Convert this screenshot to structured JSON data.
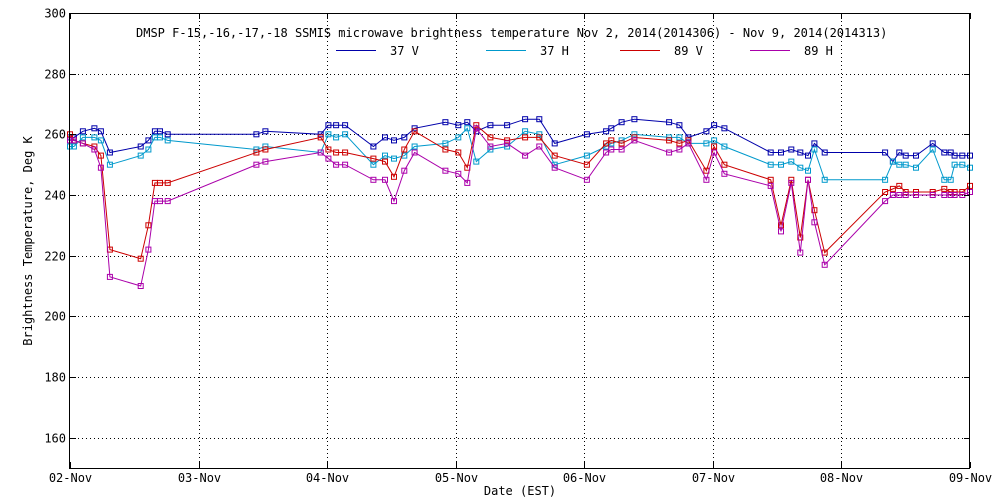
{
  "chart_data": {
    "type": "line",
    "title": "DMSP F-15,-16,-17,-18 SSMIS microwave brightness temperature Nov  2, 2014(2014306) - Nov  9, 2014(2014313)",
    "xlabel": "Date (EST)",
    "ylabel": "Brightness Temperature, Deg K",
    "xlim": [
      0,
      7
    ],
    "ylim": [
      150,
      300
    ],
    "yticks": [
      160,
      180,
      200,
      220,
      240,
      260,
      280,
      300
    ],
    "xticks": [
      0,
      1,
      2,
      3,
      4,
      5,
      6,
      7
    ],
    "xtick_labels": [
      "02-Nov",
      "03-Nov",
      "04-Nov",
      "05-Nov",
      "06-Nov",
      "07-Nov",
      "08-Nov",
      "09-Nov"
    ],
    "grid": true,
    "legend_position": "top-center",
    "series": [
      {
        "name": "37 V",
        "color": "#0000aa",
        "x": [
          0.0,
          0.03,
          0.1,
          0.19,
          0.24,
          0.31,
          0.55,
          0.61,
          0.66,
          0.7,
          0.76,
          1.45,
          1.52,
          1.95,
          2.01,
          2.07,
          2.14,
          2.36,
          2.45,
          2.52,
          2.6,
          2.68,
          2.92,
          3.02,
          3.09,
          3.16,
          3.27,
          3.4,
          3.54,
          3.65,
          3.77,
          4.02,
          4.17,
          4.21,
          4.29,
          4.39,
          4.66,
          4.74,
          4.81,
          4.95,
          5.01,
          5.09,
          5.45,
          5.53,
          5.61,
          5.68,
          5.74,
          5.79,
          5.87,
          6.34,
          6.4,
          6.45,
          6.5,
          6.58,
          6.71,
          6.8,
          6.85,
          6.88,
          6.94,
          7.0
        ],
        "y": [
          259,
          259,
          261,
          262,
          261,
          254,
          256,
          258,
          261,
          261,
          260,
          260,
          261,
          260,
          263,
          263,
          263,
          256,
          259,
          258,
          259,
          262,
          264,
          263,
          264,
          261,
          263,
          263,
          265,
          265,
          257,
          260,
          261,
          262,
          264,
          265,
          264,
          263,
          259,
          261,
          263,
          262,
          254,
          254,
          255,
          254,
          253,
          257,
          254,
          254,
          251,
          254,
          253,
          253,
          257,
          254,
          254,
          253,
          253,
          253
        ]
      },
      {
        "name": "37 H",
        "color": "#0099cc",
        "x": [
          0.0,
          0.03,
          0.1,
          0.19,
          0.24,
          0.31,
          0.55,
          0.61,
          0.66,
          0.7,
          0.76,
          1.45,
          1.52,
          1.95,
          2.01,
          2.07,
          2.14,
          2.36,
          2.45,
          2.52,
          2.6,
          2.68,
          2.92,
          3.02,
          3.09,
          3.16,
          3.27,
          3.4,
          3.54,
          3.65,
          3.77,
          4.02,
          4.17,
          4.21,
          4.29,
          4.39,
          4.66,
          4.74,
          4.81,
          4.95,
          5.01,
          5.09,
          5.45,
          5.53,
          5.61,
          5.68,
          5.74,
          5.79,
          5.87,
          6.34,
          6.4,
          6.45,
          6.5,
          6.58,
          6.71,
          6.8,
          6.85,
          6.88,
          6.94,
          7.0
        ],
        "y": [
          256,
          256,
          259,
          259,
          258,
          250,
          253,
          255,
          259,
          259,
          258,
          255,
          256,
          254,
          260,
          259,
          260,
          250,
          253,
          252,
          253,
          256,
          257,
          259,
          262,
          251,
          255,
          256,
          261,
          260,
          250,
          253,
          256,
          257,
          258,
          260,
          259,
          259,
          257,
          257,
          258,
          256,
          250,
          250,
          251,
          249,
          248,
          255,
          245,
          245,
          251,
          250,
          250,
          249,
          255,
          245,
          245,
          250,
          250,
          249
        ]
      },
      {
        "name": "89 V",
        "color": "#cc0000",
        "x": [
          0.0,
          0.03,
          0.1,
          0.19,
          0.24,
          0.31,
          0.55,
          0.61,
          0.66,
          0.7,
          0.76,
          1.45,
          1.52,
          1.95,
          2.01,
          2.07,
          2.14,
          2.36,
          2.45,
          2.52,
          2.6,
          2.68,
          2.92,
          3.02,
          3.09,
          3.16,
          3.27,
          3.4,
          3.54,
          3.65,
          3.77,
          4.02,
          4.17,
          4.21,
          4.29,
          4.39,
          4.66,
          4.74,
          4.81,
          4.95,
          5.01,
          5.09,
          5.45,
          5.53,
          5.61,
          5.68,
          5.74,
          5.79,
          5.87,
          6.34,
          6.4,
          6.45,
          6.5,
          6.58,
          6.71,
          6.8,
          6.85,
          6.88,
          6.94,
          7.0
        ],
        "y": [
          260,
          258,
          257,
          256,
          253,
          222,
          219,
          230,
          244,
          244,
          244,
          254,
          255,
          259,
          255,
          254,
          254,
          252,
          251,
          246,
          255,
          261,
          255,
          254,
          249,
          263,
          259,
          258,
          259,
          259,
          253,
          250,
          257,
          258,
          257,
          259,
          258,
          257,
          258,
          248,
          256,
          250,
          245,
          230,
          245,
          226,
          245,
          235,
          221,
          241,
          242,
          243,
          241,
          241,
          241,
          242,
          241,
          241,
          241,
          243
        ]
      },
      {
        "name": "89 H",
        "color": "#aa00aa",
        "x": [
          0.0,
          0.03,
          0.1,
          0.19,
          0.24,
          0.31,
          0.55,
          0.61,
          0.66,
          0.7,
          0.76,
          1.45,
          1.52,
          1.95,
          2.01,
          2.07,
          2.14,
          2.36,
          2.45,
          2.52,
          2.6,
          2.68,
          2.92,
          3.02,
          3.09,
          3.16,
          3.27,
          3.4,
          3.54,
          3.65,
          3.77,
          4.02,
          4.17,
          4.21,
          4.29,
          4.39,
          4.66,
          4.74,
          4.81,
          4.95,
          5.01,
          5.09,
          5.45,
          5.53,
          5.61,
          5.68,
          5.74,
          5.79,
          5.87,
          6.34,
          6.4,
          6.45,
          6.5,
          6.58,
          6.71,
          6.8,
          6.85,
          6.88,
          6.94,
          7.0
        ],
        "y": [
          258,
          258,
          257,
          255,
          249,
          213,
          210,
          222,
          238,
          238,
          238,
          250,
          251,
          254,
          252,
          250,
          250,
          245,
          245,
          238,
          248,
          254,
          248,
          247,
          244,
          262,
          256,
          257,
          253,
          256,
          249,
          245,
          254,
          255,
          255,
          258,
          254,
          255,
          257,
          245,
          254,
          247,
          243,
          228,
          244,
          221,
          245,
          231,
          217,
          238,
          240,
          240,
          240,
          240,
          240,
          240,
          240,
          240,
          240,
          241
        ]
      }
    ]
  }
}
